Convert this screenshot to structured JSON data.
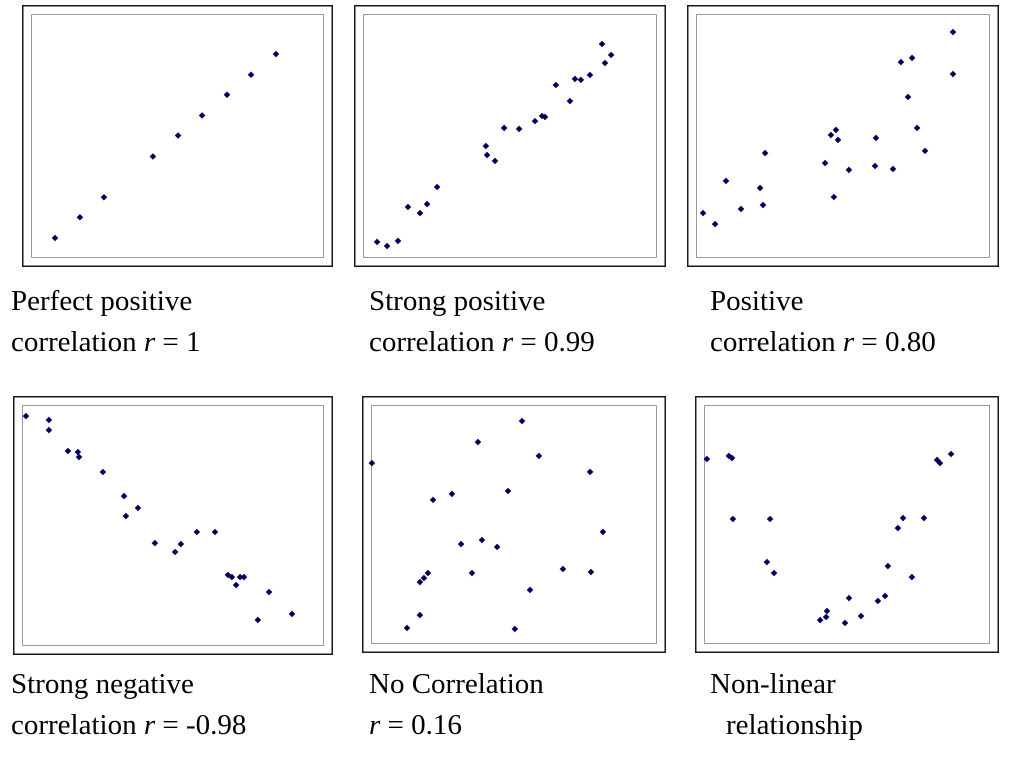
{
  "colors": {
    "background": "#ffffff",
    "marker": "#00005e",
    "frame": "#1a1a1a",
    "inner_frame": "#9b9b9b"
  },
  "chart_data": [
    {
      "type": "scatter",
      "marker": "diamond",
      "grid": false,
      "ticks": false,
      "xlim": [
        0,
        100
      ],
      "ylim": [
        0,
        100
      ],
      "caption": {
        "line1": "Perfect positive",
        "line2": {
          "pre": "correlation ",
          "var": "r",
          "post": " = 1"
        }
      },
      "x": [
        8.2,
        16.7,
        24.9,
        41.6,
        50.2,
        58.4,
        66.9,
        75.1,
        83.6
      ],
      "y": [
        8.2,
        16.7,
        24.9,
        41.6,
        50.2,
        58.4,
        66.9,
        75.1,
        83.6
      ]
    },
    {
      "type": "scatter",
      "marker": "diamond",
      "grid": false,
      "ticks": false,
      "xlim": [
        0,
        100
      ],
      "ylim": [
        0,
        100
      ],
      "caption": {
        "line1": "Strong positive",
        "line2": {
          "pre": "correlation ",
          "var": "r",
          "post": " = 0.99"
        }
      },
      "x": [
        4.8,
        8.2,
        11.9,
        15.3,
        19.4,
        21.8,
        25.2,
        41.8,
        42.2,
        44.9,
        48.0,
        53.1,
        58.5,
        60.9,
        61.9,
        65.6,
        70.4,
        72.1,
        74.1,
        77.2,
        81.3,
        82.3,
        84.4
      ],
      "y": [
        6.6,
        4.9,
        7.0,
        20.9,
        18.4,
        22.1,
        29.1,
        45.9,
        42.2,
        39.8,
        53.3,
        52.9,
        56.1,
        58.2,
        57.8,
        70.9,
        64.3,
        73.4,
        73.0,
        75.0,
        87.7,
        79.9,
        83.2
      ]
    },
    {
      "type": "scatter",
      "marker": "diamond",
      "grid": false,
      "ticks": false,
      "xlim": [
        0,
        100
      ],
      "ylim": [
        0,
        100
      ],
      "caption": {
        "line1": "Positive",
        "line2": {
          "pre": "correlation ",
          "var": "r",
          "post": " = 0.80"
        }
      },
      "x": [
        2.4,
        6.5,
        10.2,
        15.3,
        21.8,
        22.8,
        23.5,
        43.9,
        45.9,
        46.9,
        47.6,
        48.3,
        52.0,
        60.9,
        61.2,
        67.0,
        69.7,
        72.1,
        73.5,
        75.2,
        77.9,
        87.4,
        87.4
      ],
      "y": [
        18.4,
        13.9,
        31.6,
        20.1,
        28.7,
        21.7,
        43.0,
        38.9,
        50.4,
        25.0,
        52.5,
        48.4,
        36.1,
        37.7,
        49.2,
        36.5,
        80.3,
        66.0,
        82.0,
        53.3,
        43.9,
        75.4,
        92.6
      ]
    },
    {
      "type": "scatter",
      "marker": "diamond",
      "grid": false,
      "ticks": false,
      "xlim": [
        0,
        100
      ],
      "ylim": [
        0,
        100
      ],
      "caption": {
        "line1": "Strong negative",
        "line2": {
          "pre": "correlation ",
          "var": "r",
          "post": " = -0.98"
        }
      },
      "x": [
        1.3,
        8.9,
        8.9,
        15.2,
        18.5,
        18.9,
        26.8,
        33.8,
        34.4,
        38.4,
        44.0,
        50.7,
        52.6,
        57.9,
        63.9,
        68.2,
        69.5,
        70.9,
        72.2,
        73.5,
        78.1,
        81.8,
        89.4
      ],
      "y": [
        95.4,
        93.8,
        89.6,
        80.9,
        80.5,
        78.4,
        72.2,
        62.2,
        53.9,
        57.3,
        42.7,
        39.0,
        42.3,
        47.3,
        47.3,
        29.5,
        28.6,
        25.3,
        28.6,
        28.6,
        10.8,
        22.4,
        13.3
      ]
    },
    {
      "type": "scatter",
      "marker": "diamond",
      "grid": false,
      "ticks": false,
      "xlim": [
        0,
        100
      ],
      "ylim": [
        0,
        100
      ],
      "caption": {
        "line1": "No Correlation",
        "line2": {
          "pre": "",
          "var": "r",
          "post": " = 0.16"
        }
      },
      "x": [
        0.3,
        12.6,
        17.1,
        17.1,
        18.5,
        19.9,
        21.7,
        28.3,
        31.5,
        35.3,
        37.4,
        38.8,
        44.1,
        47.9,
        50.3,
        52.8,
        55.6,
        58.7,
        67.1,
        76.6,
        76.9,
        81.1
      ],
      "y": [
        75.7,
        6.7,
        12.1,
        25.9,
        27.6,
        29.7,
        60.3,
        62.8,
        41.8,
        29.7,
        84.5,
        43.5,
        40.6,
        64.0,
        6.3,
        93.3,
        22.6,
        78.7,
        31.4,
        72.0,
        30.1,
        46.9
      ]
    },
    {
      "type": "scatter",
      "marker": "diamond",
      "grid": false,
      "ticks": false,
      "xlim": [
        0,
        100
      ],
      "ylim": [
        0,
        100
      ],
      "caption": {
        "line1": "Non-linear",
        "line2": {
          "pre": "relationship",
          "var": "",
          "post": ""
        }
      },
      "x": [
        1.0,
        8.7,
        9.8,
        10.1,
        23.1,
        22.0,
        24.5,
        40.6,
        42.7,
        43.0,
        49.3,
        50.7,
        54.9,
        60.8,
        63.3,
        64.3,
        67.8,
        69.6,
        72.7,
        76.9,
        81.5,
        82.5,
        86.4
      ],
      "y": [
        77.4,
        78.7,
        77.8,
        52.3,
        52.3,
        34.3,
        29.7,
        10.0,
        11.3,
        13.8,
        8.8,
        19.2,
        11.7,
        18.0,
        20.1,
        32.6,
        48.5,
        52.7,
        28.0,
        52.7,
        77.0,
        75.7,
        79.5
      ]
    }
  ]
}
